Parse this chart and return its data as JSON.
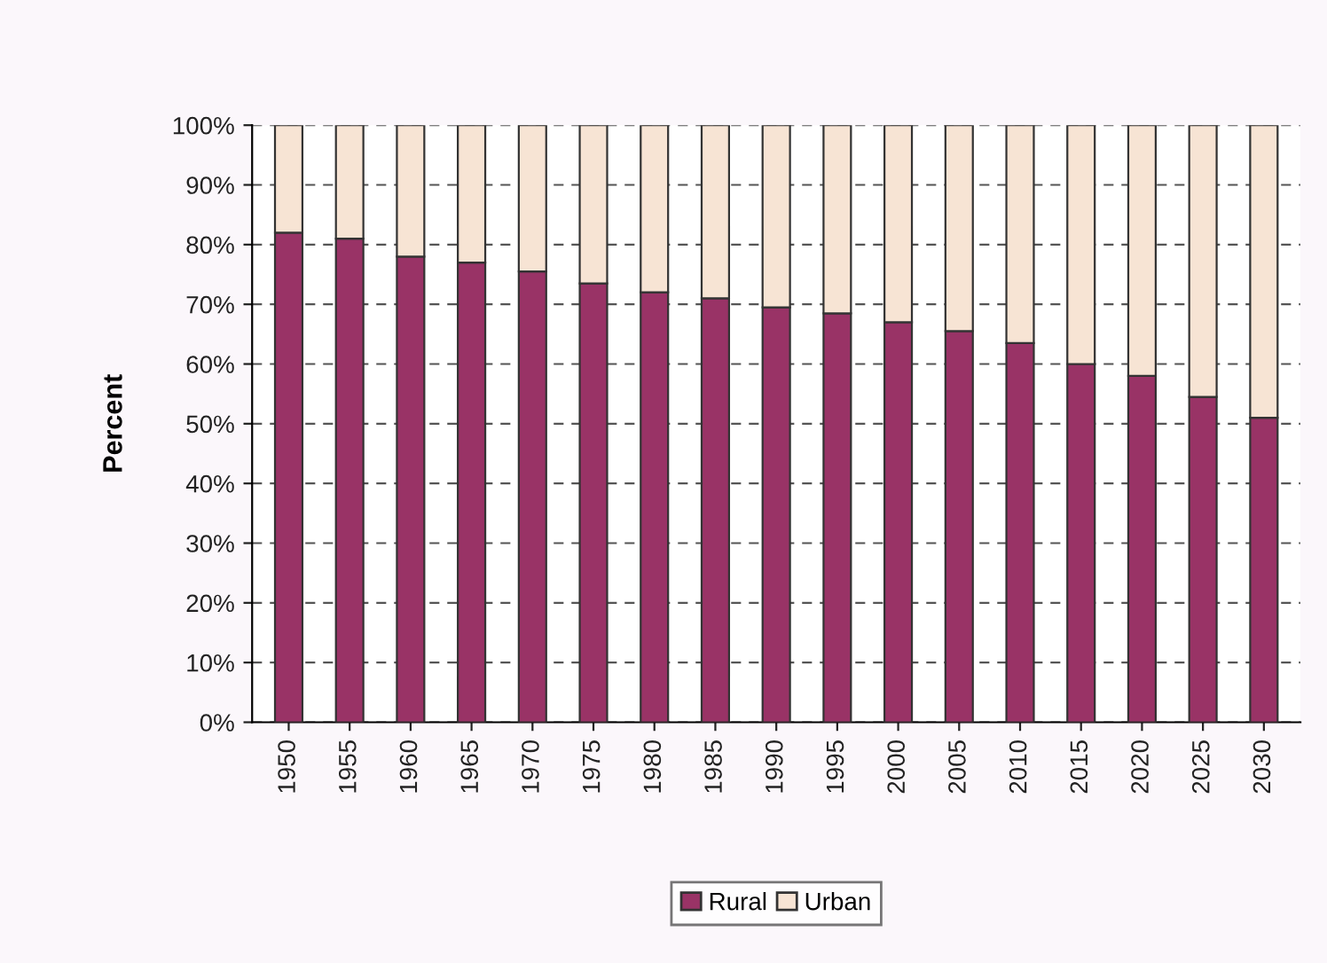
{
  "chart_data": {
    "type": "bar",
    "stacked": true,
    "ylabel": "Percent",
    "categories": [
      "1950",
      "1955",
      "1960",
      "1965",
      "1970",
      "1975",
      "1980",
      "1985",
      "1990",
      "1995",
      "2000",
      "2005",
      "2010",
      "2015",
      "2020",
      "2025",
      "2030"
    ],
    "series": [
      {
        "name": "Rural",
        "color": "#993366",
        "values": [
          82,
          81,
          78,
          77,
          75.5,
          73.5,
          72,
          71,
          69.5,
          68.5,
          67,
          65.5,
          63.5,
          60,
          58,
          54.5,
          51
        ]
      },
      {
        "name": "Urban",
        "color": "#f7e4d4",
        "values": [
          18,
          19,
          22,
          23,
          24.5,
          26.5,
          28,
          29,
          30.5,
          31.5,
          33,
          34.5,
          36.5,
          40,
          42,
          45.5,
          49
        ]
      }
    ],
    "ylim": [
      0,
      100
    ],
    "yticks": [
      {
        "value": 0,
        "label": "0%"
      },
      {
        "value": 10,
        "label": "10%"
      },
      {
        "value": 20,
        "label": "20%"
      },
      {
        "value": 30,
        "label": "30%"
      },
      {
        "value": 40,
        "label": "40%"
      },
      {
        "value": 50,
        "label": "50%"
      },
      {
        "value": 60,
        "label": "60%"
      },
      {
        "value": 70,
        "label": "70%"
      },
      {
        "value": 80,
        "label": "80%"
      },
      {
        "value": 90,
        "label": "90%"
      },
      {
        "value": 100,
        "label": "100%"
      }
    ],
    "grid": "y",
    "legend": "bottom"
  }
}
